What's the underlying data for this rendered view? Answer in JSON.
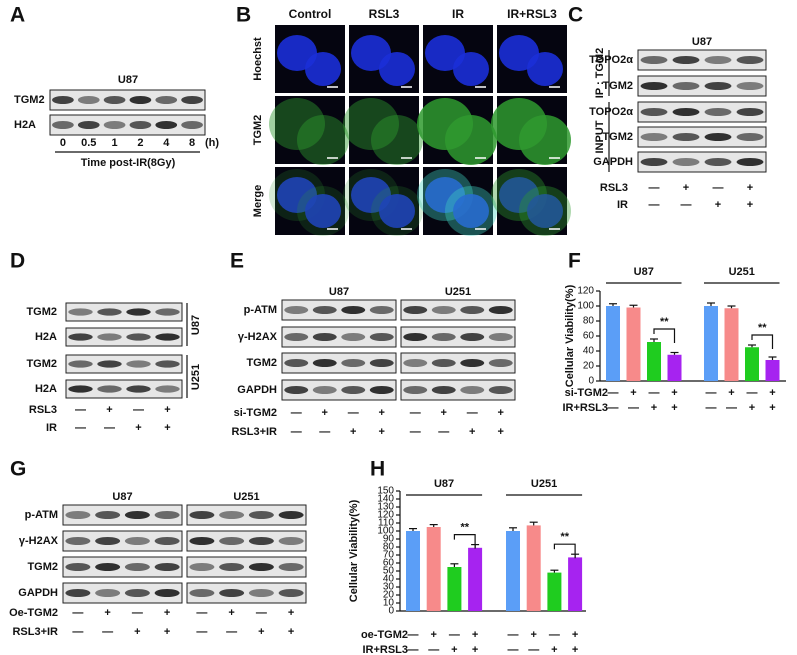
{
  "panels": {
    "A": {
      "label": "A",
      "title": "U87",
      "rows": [
        "TGM2",
        "H2A"
      ],
      "lanes": [
        "0",
        "0.5",
        "1",
        "2",
        "4",
        "8"
      ],
      "unit": "(h)",
      "caption": "Time post-IR(8Gy)"
    },
    "B": {
      "label": "B",
      "columns": [
        "Control",
        "RSL3",
        "IR",
        "IR+RSL3"
      ],
      "rows": [
        "Hoechst",
        "TGM2",
        "Merge"
      ]
    },
    "C": {
      "label": "C",
      "title": "U87",
      "ip_label": "IP : TGM2",
      "ip_rows": [
        "TOPO2α",
        "TGM2"
      ],
      "input_label": "INPUT",
      "input_rows": [
        "TOPO2α",
        "TGM2",
        "GAPDH"
      ],
      "conditions": [
        {
          "name": "RSL3",
          "signs": [
            "—",
            "+",
            "—",
            "+"
          ]
        },
        {
          "name": "IR",
          "signs": [
            "—",
            "—",
            "+",
            "+"
          ]
        }
      ]
    },
    "D": {
      "label": "D",
      "blots": [
        {
          "cell": "U87",
          "rows": [
            "TGM2",
            "H2A"
          ]
        },
        {
          "cell": "U251",
          "rows": [
            "TGM2",
            "H2A"
          ]
        }
      ],
      "conditions": [
        {
          "name": "RSL3",
          "signs": [
            "—",
            "+",
            "—",
            "+"
          ]
        },
        {
          "name": "IR",
          "signs": [
            "—",
            "—",
            "+",
            "+"
          ]
        }
      ]
    },
    "E": {
      "label": "E",
      "groups": [
        "U87",
        "U251"
      ],
      "rows": [
        "p-ATM",
        "γ-H2AX",
        "TGM2",
        "GAPDH"
      ],
      "conditions": [
        {
          "name": "si-TGM2",
          "signs": [
            "—",
            "+",
            "—",
            "+",
            "—",
            "+",
            "—",
            "+"
          ]
        },
        {
          "name": "RSL3+IR",
          "signs": [
            "—",
            "—",
            "+",
            "+",
            "—",
            "—",
            "+",
            "+"
          ]
        }
      ]
    },
    "G": {
      "label": "G",
      "groups": [
        "U87",
        "U251"
      ],
      "rows": [
        "p-ATM",
        "γ-H2AX",
        "TGM2",
        "GAPDH"
      ],
      "conditions": [
        {
          "name": "Oe-TGM2",
          "signs": [
            "—",
            "+",
            "—",
            "+",
            "—",
            "+",
            "—",
            "+"
          ]
        },
        {
          "name": "RSL3+IR",
          "signs": [
            "—",
            "—",
            "+",
            "+",
            "—",
            "—",
            "+",
            "+"
          ]
        }
      ]
    }
  },
  "chart_data": [
    {
      "type": "bar",
      "label": "F",
      "ylabel": "Cellular Viability(%)",
      "groups": [
        "U87",
        "U251"
      ],
      "values": [
        100,
        98,
        52,
        35,
        100,
        97,
        45,
        28
      ],
      "errors": [
        3,
        3,
        4,
        3,
        4,
        3,
        3,
        4
      ],
      "colors": [
        "#5b9ef7",
        "#f78a8a",
        "#1fcc1f",
        "#a623f0"
      ],
      "ylim": [
        0,
        120
      ],
      "yticks": [
        0,
        20,
        40,
        60,
        80,
        100,
        120
      ],
      "significance": [
        "**",
        "**"
      ],
      "conditions": [
        {
          "name": "si-TGM2",
          "signs": [
            "—",
            "+",
            "—",
            "+",
            "—",
            "+",
            "—",
            "+"
          ]
        },
        {
          "name": "IR+RSL3",
          "signs": [
            "—",
            "—",
            "+",
            "+",
            "—",
            "—",
            "+",
            "+"
          ]
        }
      ]
    },
    {
      "type": "bar",
      "label": "H",
      "ylabel": "Cellular Viability(%)",
      "groups": [
        "U87",
        "U251"
      ],
      "values": [
        100,
        105,
        55,
        79,
        100,
        107,
        48,
        67
      ],
      "errors": [
        3,
        3,
        4,
        4,
        4,
        4,
        3,
        4
      ],
      "colors": [
        "#5b9ef7",
        "#f78a8a",
        "#1fcc1f",
        "#a623f0"
      ],
      "ylim": [
        0,
        150
      ],
      "yticks": [
        0,
        10,
        20,
        30,
        40,
        50,
        60,
        70,
        80,
        90,
        100,
        110,
        120,
        130,
        140,
        150
      ],
      "significance": [
        "**",
        "**"
      ],
      "conditions": [
        {
          "name": "oe-TGM2",
          "signs": [
            "—",
            "+",
            "—",
            "+",
            "—",
            "+",
            "—",
            "+"
          ]
        },
        {
          "name": "IR+RSL3",
          "signs": [
            "—",
            "—",
            "+",
            "+",
            "—",
            "—",
            "+",
            "+"
          ]
        }
      ]
    }
  ]
}
